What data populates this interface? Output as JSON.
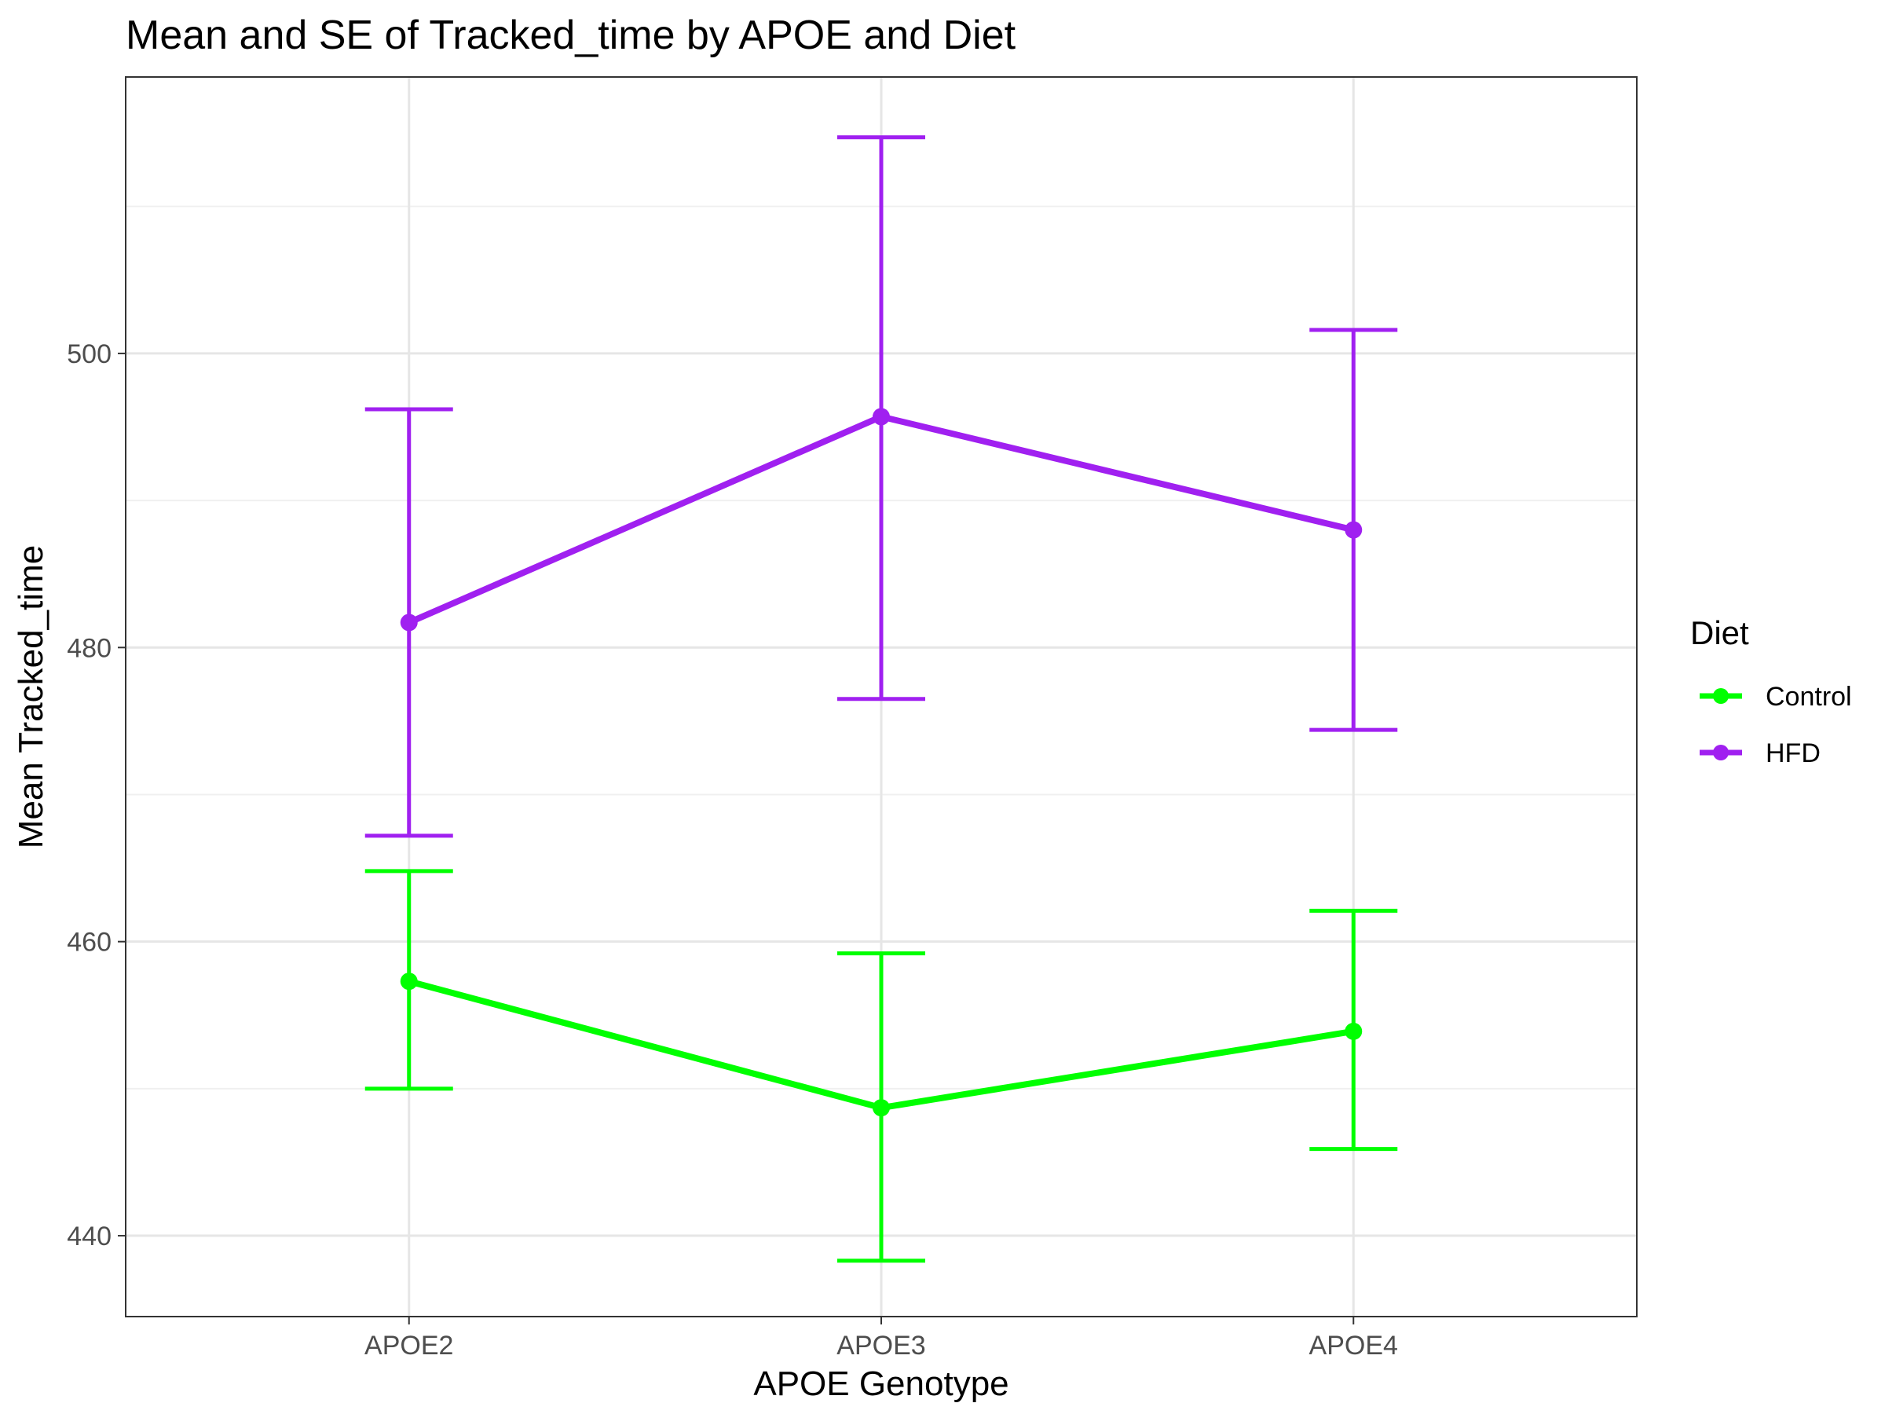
{
  "chart_data": {
    "type": "line",
    "title": "Mean and SE of Tracked_time by APOE and Diet",
    "xlabel": "APOE Genotype",
    "ylabel": "Mean Tracked_time",
    "categories": [
      "APOE2",
      "APOE3",
      "APOE4"
    ],
    "ylim": [
      434.5,
      518.8
    ],
    "yticks": [
      440,
      460,
      480,
      500
    ],
    "ytick_labels": [
      "440",
      "460",
      "480",
      "500"
    ],
    "grid": true,
    "legend": {
      "title": "Diet",
      "position": "right"
    },
    "series": [
      {
        "name": "Control",
        "color": "#00ff00",
        "values": [
          457.3,
          448.7,
          453.9
        ],
        "lower": [
          450.0,
          438.3,
          445.9
        ],
        "upper": [
          464.8,
          459.2,
          462.1
        ]
      },
      {
        "name": "HFD",
        "color": "#a020f0",
        "values": [
          481.7,
          495.7,
          488.0
        ],
        "lower": [
          467.2,
          476.5,
          474.4
        ],
        "upper": [
          496.2,
          514.7,
          501.6
        ]
      }
    ]
  }
}
